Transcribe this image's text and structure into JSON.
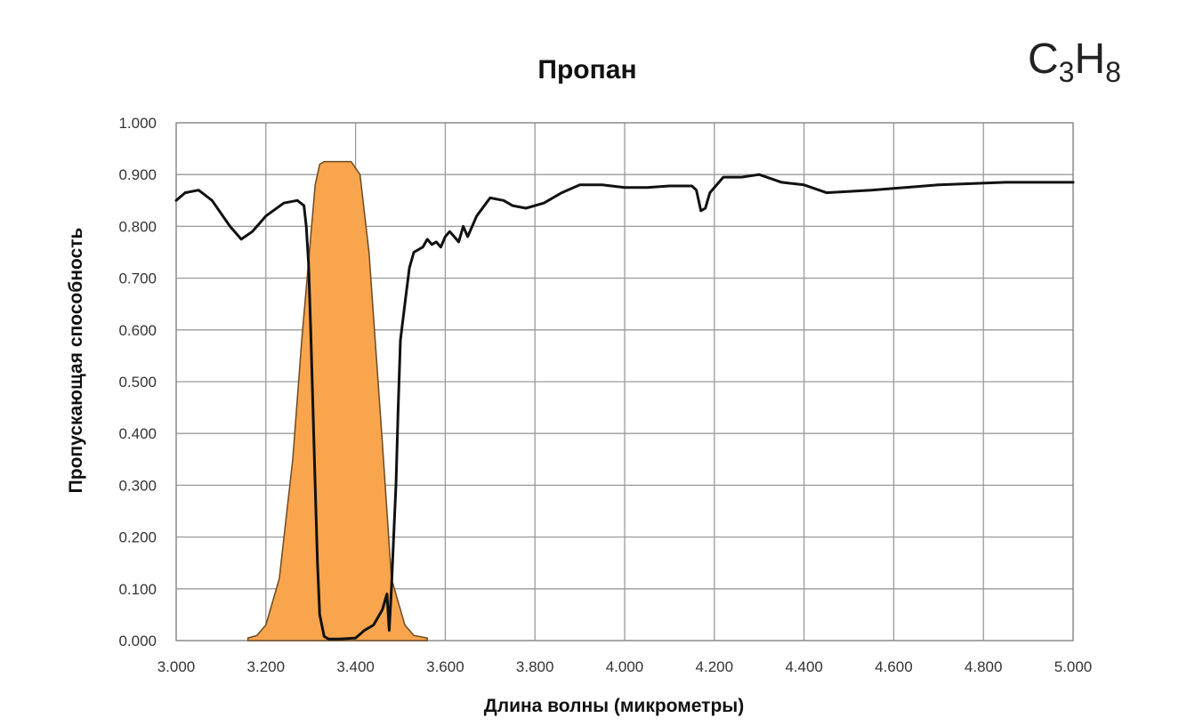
{
  "formula": {
    "main1": "C",
    "sub1": "3",
    "main2": "H",
    "sub2": "8"
  },
  "chart_data": {
    "type": "line",
    "title": "Пропан",
    "xlabel": "Длина волны (микрометры)",
    "ylabel": "Пропускающая способность",
    "xlim": [
      3.0,
      5.0
    ],
    "ylim": [
      0.0,
      1.0
    ],
    "grid": true,
    "x_tick_labels": [
      "3.000",
      "3.200",
      "3.400",
      "3.600",
      "3.800",
      "4.000",
      "4.200",
      "4.400",
      "4.600",
      "4.800",
      "5.000"
    ],
    "y_tick_labels": [
      "0.000",
      "0.100",
      "0.200",
      "0.300",
      "0.400",
      "0.500",
      "0.600",
      "0.700",
      "0.800",
      "0.900",
      "1.000"
    ],
    "series": [
      {
        "kind": "area",
        "color": "#F9A54E",
        "x": [
          3.16,
          3.18,
          3.2,
          3.23,
          3.26,
          3.28,
          3.3,
          3.31,
          3.32,
          3.33,
          3.39,
          3.41,
          3.43,
          3.46,
          3.48,
          3.51,
          3.53,
          3.56
        ],
        "y": [
          0.005,
          0.01,
          0.03,
          0.12,
          0.35,
          0.58,
          0.78,
          0.88,
          0.92,
          0.925,
          0.925,
          0.9,
          0.75,
          0.38,
          0.12,
          0.03,
          0.01,
          0.005
        ]
      },
      {
        "kind": "line",
        "color": "#111111",
        "x": [
          3.0,
          3.02,
          3.05,
          3.08,
          3.12,
          3.145,
          3.17,
          3.2,
          3.24,
          3.27,
          3.285,
          3.29,
          3.295,
          3.3,
          3.305,
          3.31,
          3.315,
          3.32,
          3.33,
          3.34,
          3.36,
          3.4,
          3.42,
          3.44,
          3.46,
          3.47,
          3.475,
          3.48,
          3.485,
          3.49,
          3.495,
          3.5,
          3.51,
          3.52,
          3.53,
          3.55,
          3.56,
          3.57,
          3.58,
          3.59,
          3.6,
          3.61,
          3.63,
          3.64,
          3.65,
          3.67,
          3.7,
          3.73,
          3.75,
          3.78,
          3.82,
          3.86,
          3.9,
          3.95,
          4.0,
          4.05,
          4.1,
          4.15,
          4.16,
          4.17,
          4.18,
          4.19,
          4.22,
          4.26,
          4.3,
          4.35,
          4.4,
          4.45,
          4.55,
          4.7,
          4.85,
          5.0
        ],
        "y": [
          0.85,
          0.865,
          0.87,
          0.85,
          0.8,
          0.775,
          0.79,
          0.82,
          0.845,
          0.85,
          0.84,
          0.8,
          0.73,
          0.6,
          0.45,
          0.3,
          0.15,
          0.05,
          0.008,
          0.003,
          0.003,
          0.005,
          0.02,
          0.03,
          0.06,
          0.09,
          0.02,
          0.1,
          0.2,
          0.3,
          0.45,
          0.58,
          0.65,
          0.72,
          0.75,
          0.76,
          0.775,
          0.765,
          0.77,
          0.76,
          0.78,
          0.79,
          0.77,
          0.8,
          0.78,
          0.82,
          0.855,
          0.85,
          0.84,
          0.835,
          0.845,
          0.865,
          0.88,
          0.88,
          0.875,
          0.875,
          0.878,
          0.878,
          0.87,
          0.83,
          0.835,
          0.865,
          0.895,
          0.895,
          0.9,
          0.885,
          0.88,
          0.865,
          0.87,
          0.88,
          0.885,
          0.885
        ]
      }
    ]
  }
}
